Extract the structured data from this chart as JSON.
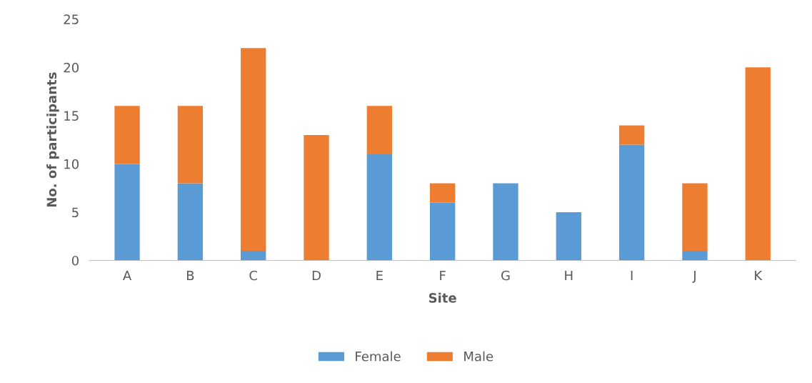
{
  "chart_data": {
    "type": "bar",
    "stacked": true,
    "xlabel": "Site",
    "ylabel": "No. of participants",
    "categories": [
      "A",
      "B",
      "C",
      "D",
      "E",
      "F",
      "G",
      "H",
      "I",
      "J",
      "K"
    ],
    "series": [
      {
        "name": "Female",
        "color": "#5b9bd5",
        "values": [
          10,
          8,
          1,
          0,
          11,
          6,
          8,
          5,
          12,
          1,
          0
        ]
      },
      {
        "name": "Male",
        "color": "#ed7d31",
        "values": [
          6,
          8,
          21,
          13,
          5,
          2,
          0,
          0,
          2,
          7,
          20
        ]
      }
    ],
    "ylim": [
      0,
      25
    ],
    "yticks": [
      0,
      5,
      10,
      15,
      20,
      25
    ],
    "grid": false,
    "legend": "bottom"
  }
}
